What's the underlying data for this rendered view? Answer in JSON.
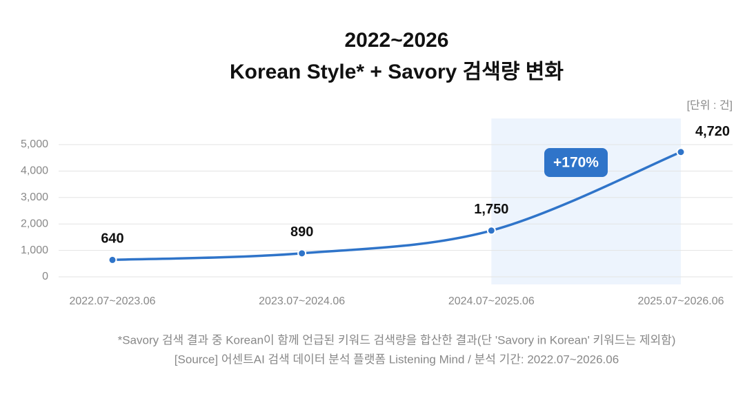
{
  "chart_data": {
    "type": "line",
    "title": "2022~2026",
    "subtitle": "Korean Style* + Savory 검색량 변화",
    "unit": "[단위 : 건]",
    "categories": [
      "2022.07~2023.06",
      "2023.07~2024.06",
      "2024.07~2025.06",
      "2025.07~2026.06"
    ],
    "values": [
      640,
      890,
      1750,
      4720
    ],
    "value_labels": [
      "640",
      "890",
      "1,750",
      "4,720"
    ],
    "color": "#2f74c9",
    "annotation": "+170%",
    "ylim": [
      0,
      5000
    ],
    "yticks": [
      0,
      {
        "value": 1000,
        "label": "1,000"
      },
      {
        "value": 2000,
        "label": "2,000"
      },
      {
        "value": 3000,
        "label": "3,000"
      },
      {
        "value": 4000,
        "label": "4,000"
      },
      {
        "value": 5000,
        "label": "5,000"
      }
    ],
    "grid": true,
    "notes": [
      "*Savory 검색 결과 중 Korean이 함께 언급된 키워드 검색량을 합산한 결과(단 'Savory in Korean' 키워드는 제외함)",
      "[Source] 어센트AI 검색 데이터 분석 플랫폼 Listening Mind / 분석 기간: 2022.07~2026.06"
    ]
  }
}
